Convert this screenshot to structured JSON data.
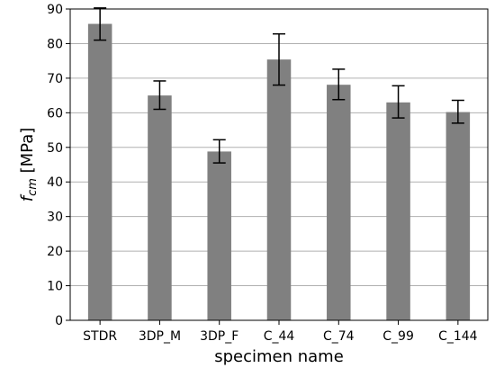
{
  "chart_data": {
    "type": "bar",
    "categories": [
      "STDR",
      "3DP_M",
      "3DP_F",
      "C_44",
      "C_74",
      "C_99",
      "C_144"
    ],
    "values": [
      85.7,
      65.0,
      48.8,
      75.4,
      68.1,
      63.0,
      60.2
    ],
    "error_low": [
      81.0,
      61.0,
      45.5,
      68.0,
      63.8,
      58.5,
      57.0
    ],
    "error_high": [
      90.3,
      69.2,
      52.2,
      82.8,
      72.6,
      67.8,
      63.6
    ],
    "xlabel": "specimen name",
    "ylabel_main": "f",
    "ylabel_sub": "cm",
    "ylabel_unit": " [MPa]",
    "ylim": [
      0,
      90
    ],
    "yticks": [
      0,
      10,
      20,
      30,
      40,
      50,
      60,
      70,
      80,
      90
    ],
    "grid": "horizontal",
    "colors": {
      "bar": "#808080",
      "grid": "#b0b0b0",
      "axis": "#000000",
      "errorbar": "#000000"
    }
  }
}
